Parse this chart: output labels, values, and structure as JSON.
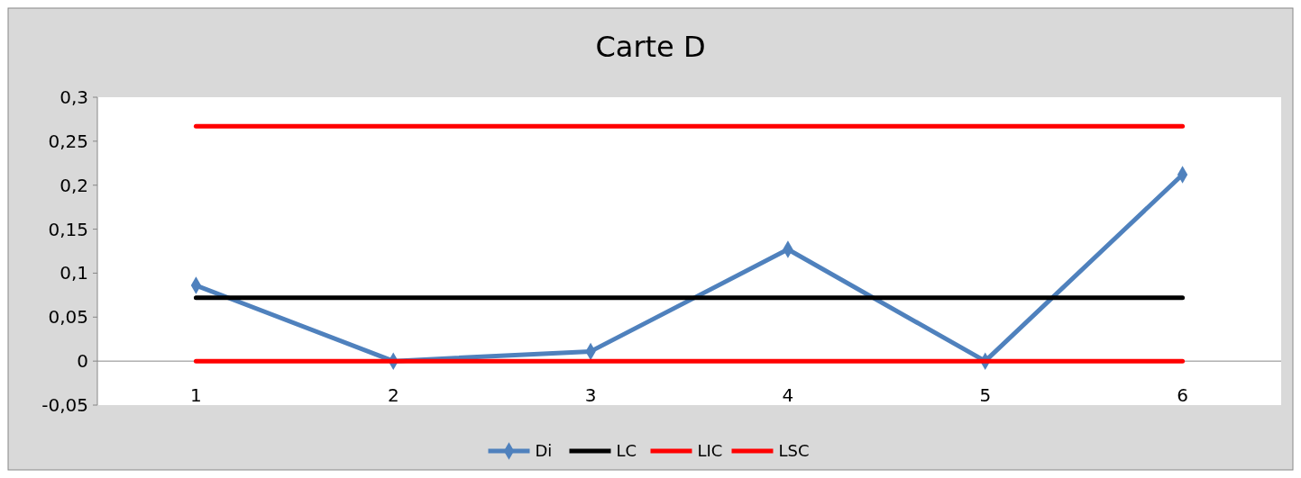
{
  "chart_data": {
    "type": "line",
    "title": "Carte D",
    "categories": [
      "1",
      "2",
      "3",
      "4",
      "5",
      "6"
    ],
    "ylim": [
      -0.05,
      0.3
    ],
    "yticks": [
      {
        "value": -0.05,
        "label": "-0,05"
      },
      {
        "value": 0,
        "label": "0"
      },
      {
        "value": 0.05,
        "label": "0,05"
      },
      {
        "value": 0.1,
        "label": "0,1"
      },
      {
        "value": 0.15,
        "label": "0,15"
      },
      {
        "value": 0.2,
        "label": "0,2"
      },
      {
        "value": 0.25,
        "label": "0,25"
      },
      {
        "value": 0.3,
        "label": "0,3"
      }
    ],
    "legend": "bottom",
    "series": [
      {
        "name": "Di",
        "color": "#4f81bd",
        "marker": "diamond",
        "values": [
          0.086,
          0,
          0.011,
          0.127,
          0,
          0.212
        ]
      },
      {
        "name": "LC",
        "color": "#000000",
        "marker": "none",
        "values": [
          0.072,
          0.072,
          0.072,
          0.072,
          0.072,
          0.072
        ]
      },
      {
        "name": "LIC",
        "color": "#ff0000",
        "marker": "none",
        "values": [
          0,
          0,
          0,
          0,
          0,
          0
        ]
      },
      {
        "name": "LSC",
        "color": "#ff0000",
        "marker": "none",
        "values": [
          0.267,
          0.267,
          0.267,
          0.267,
          0.267,
          0.267
        ]
      }
    ]
  }
}
